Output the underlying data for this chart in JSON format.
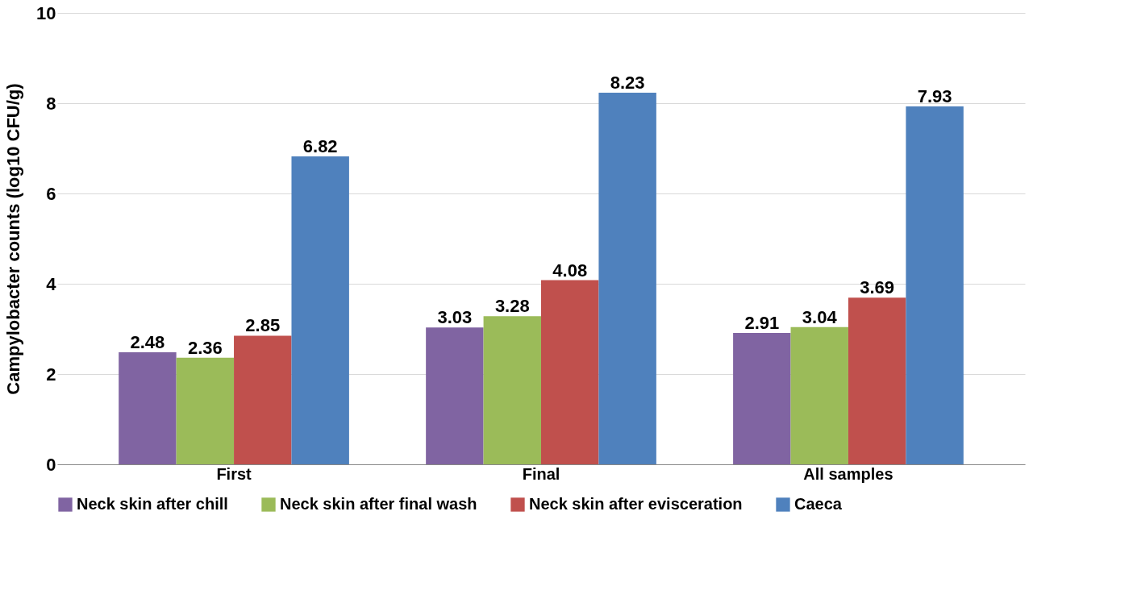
{
  "chart_data": {
    "type": "bar",
    "ylabel": "Campylobacter counts (log10 CFU/g)",
    "categories": [
      "First",
      "Final",
      "All samples"
    ],
    "series": [
      {
        "name": "Neck skin after chill",
        "color": "#8064a2",
        "values": [
          2.48,
          3.03,
          2.91
        ]
      },
      {
        "name": "Neck skin after final wash",
        "color": "#9bbb59",
        "values": [
          2.36,
          3.28,
          3.04
        ]
      },
      {
        "name": "Neck skin after evisceration",
        "color": "#c0504d",
        "values": [
          2.85,
          4.08,
          3.69
        ]
      },
      {
        "name": "Caeca",
        "color": "#4f81bd",
        "values": [
          6.82,
          8.23,
          7.93
        ]
      }
    ],
    "ylim": [
      0,
      10
    ],
    "yticks": [
      0,
      2,
      4,
      6,
      8,
      10
    ],
    "grid": "y",
    "legend": "bottom",
    "data_labels": true
  }
}
